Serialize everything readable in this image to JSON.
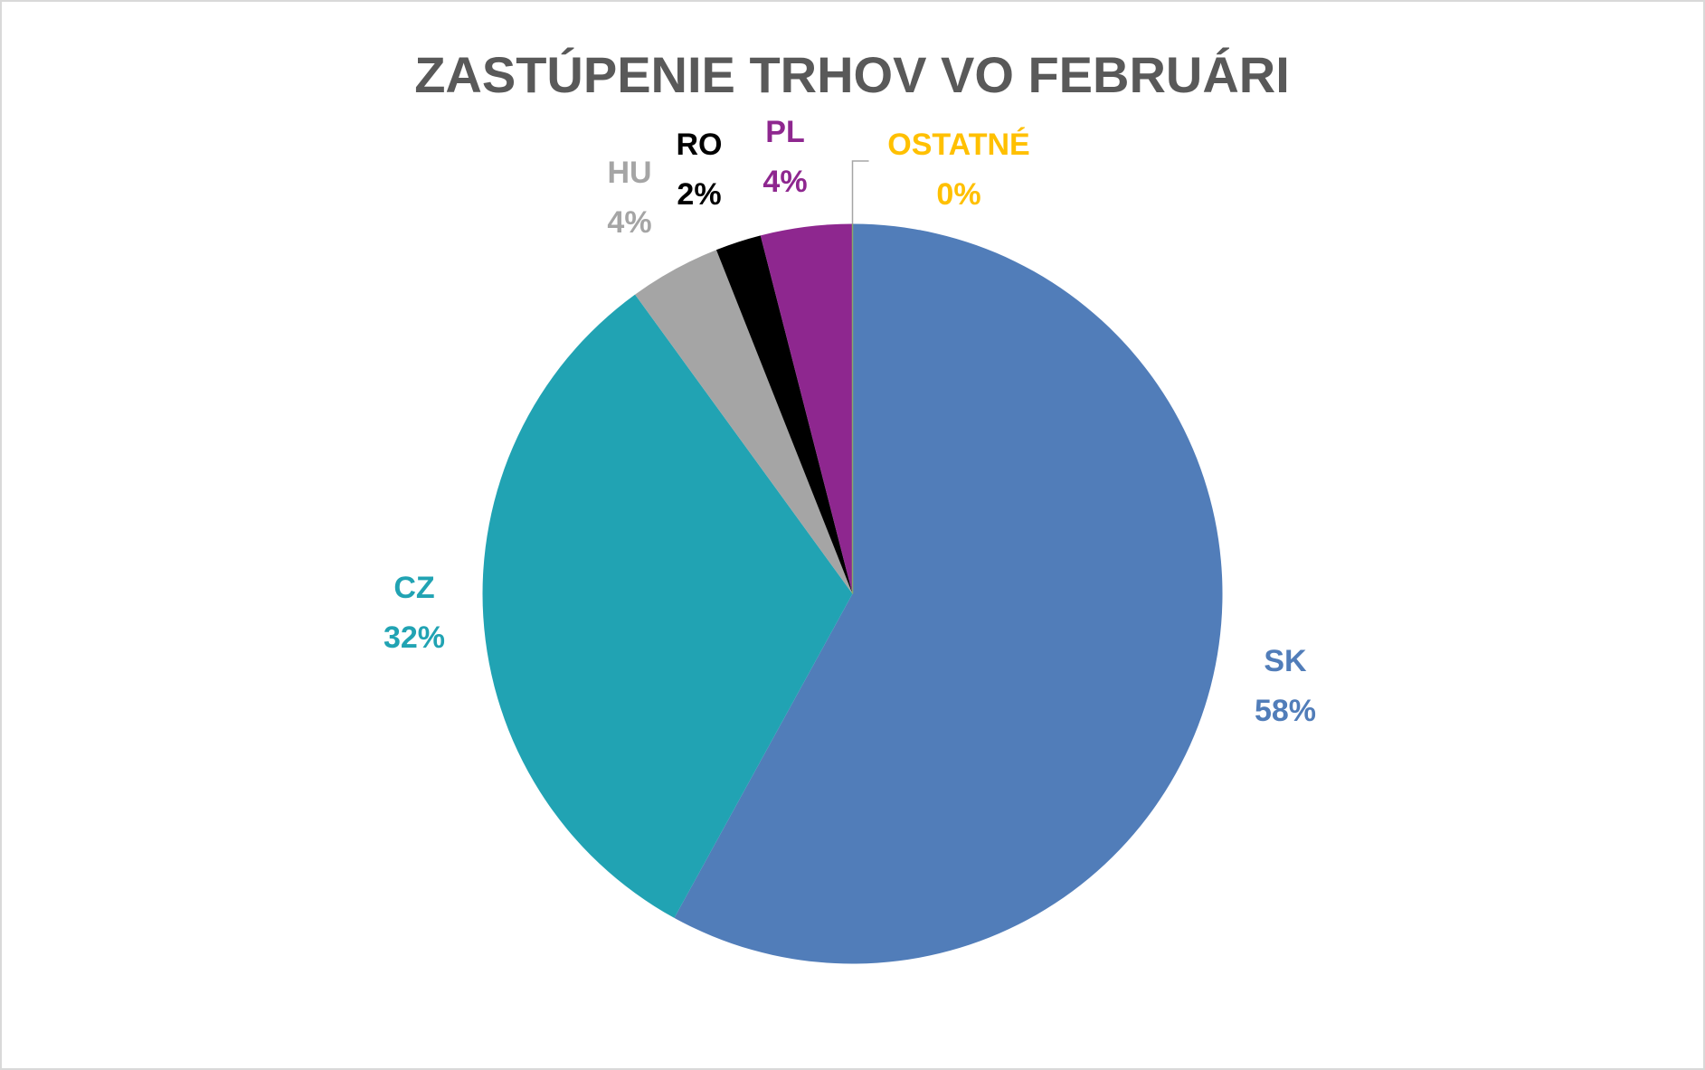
{
  "chart_data": {
    "type": "pie",
    "title": "ZASTÚPENIE TRHOV VO FEBRUÁRI",
    "categories": [
      "SK",
      "CZ",
      "HU",
      "RO",
      "PL",
      "OSTATNÉ"
    ],
    "values": [
      58,
      32,
      4,
      2,
      4,
      0
    ],
    "value_labels": [
      "58%",
      "32%",
      "4%",
      "2%",
      "4%",
      "0%"
    ],
    "colors": [
      "#517db9",
      "#21a3b3",
      "#a5a5a5",
      "#000000",
      "#8e278f",
      "#ffc000"
    ]
  }
}
